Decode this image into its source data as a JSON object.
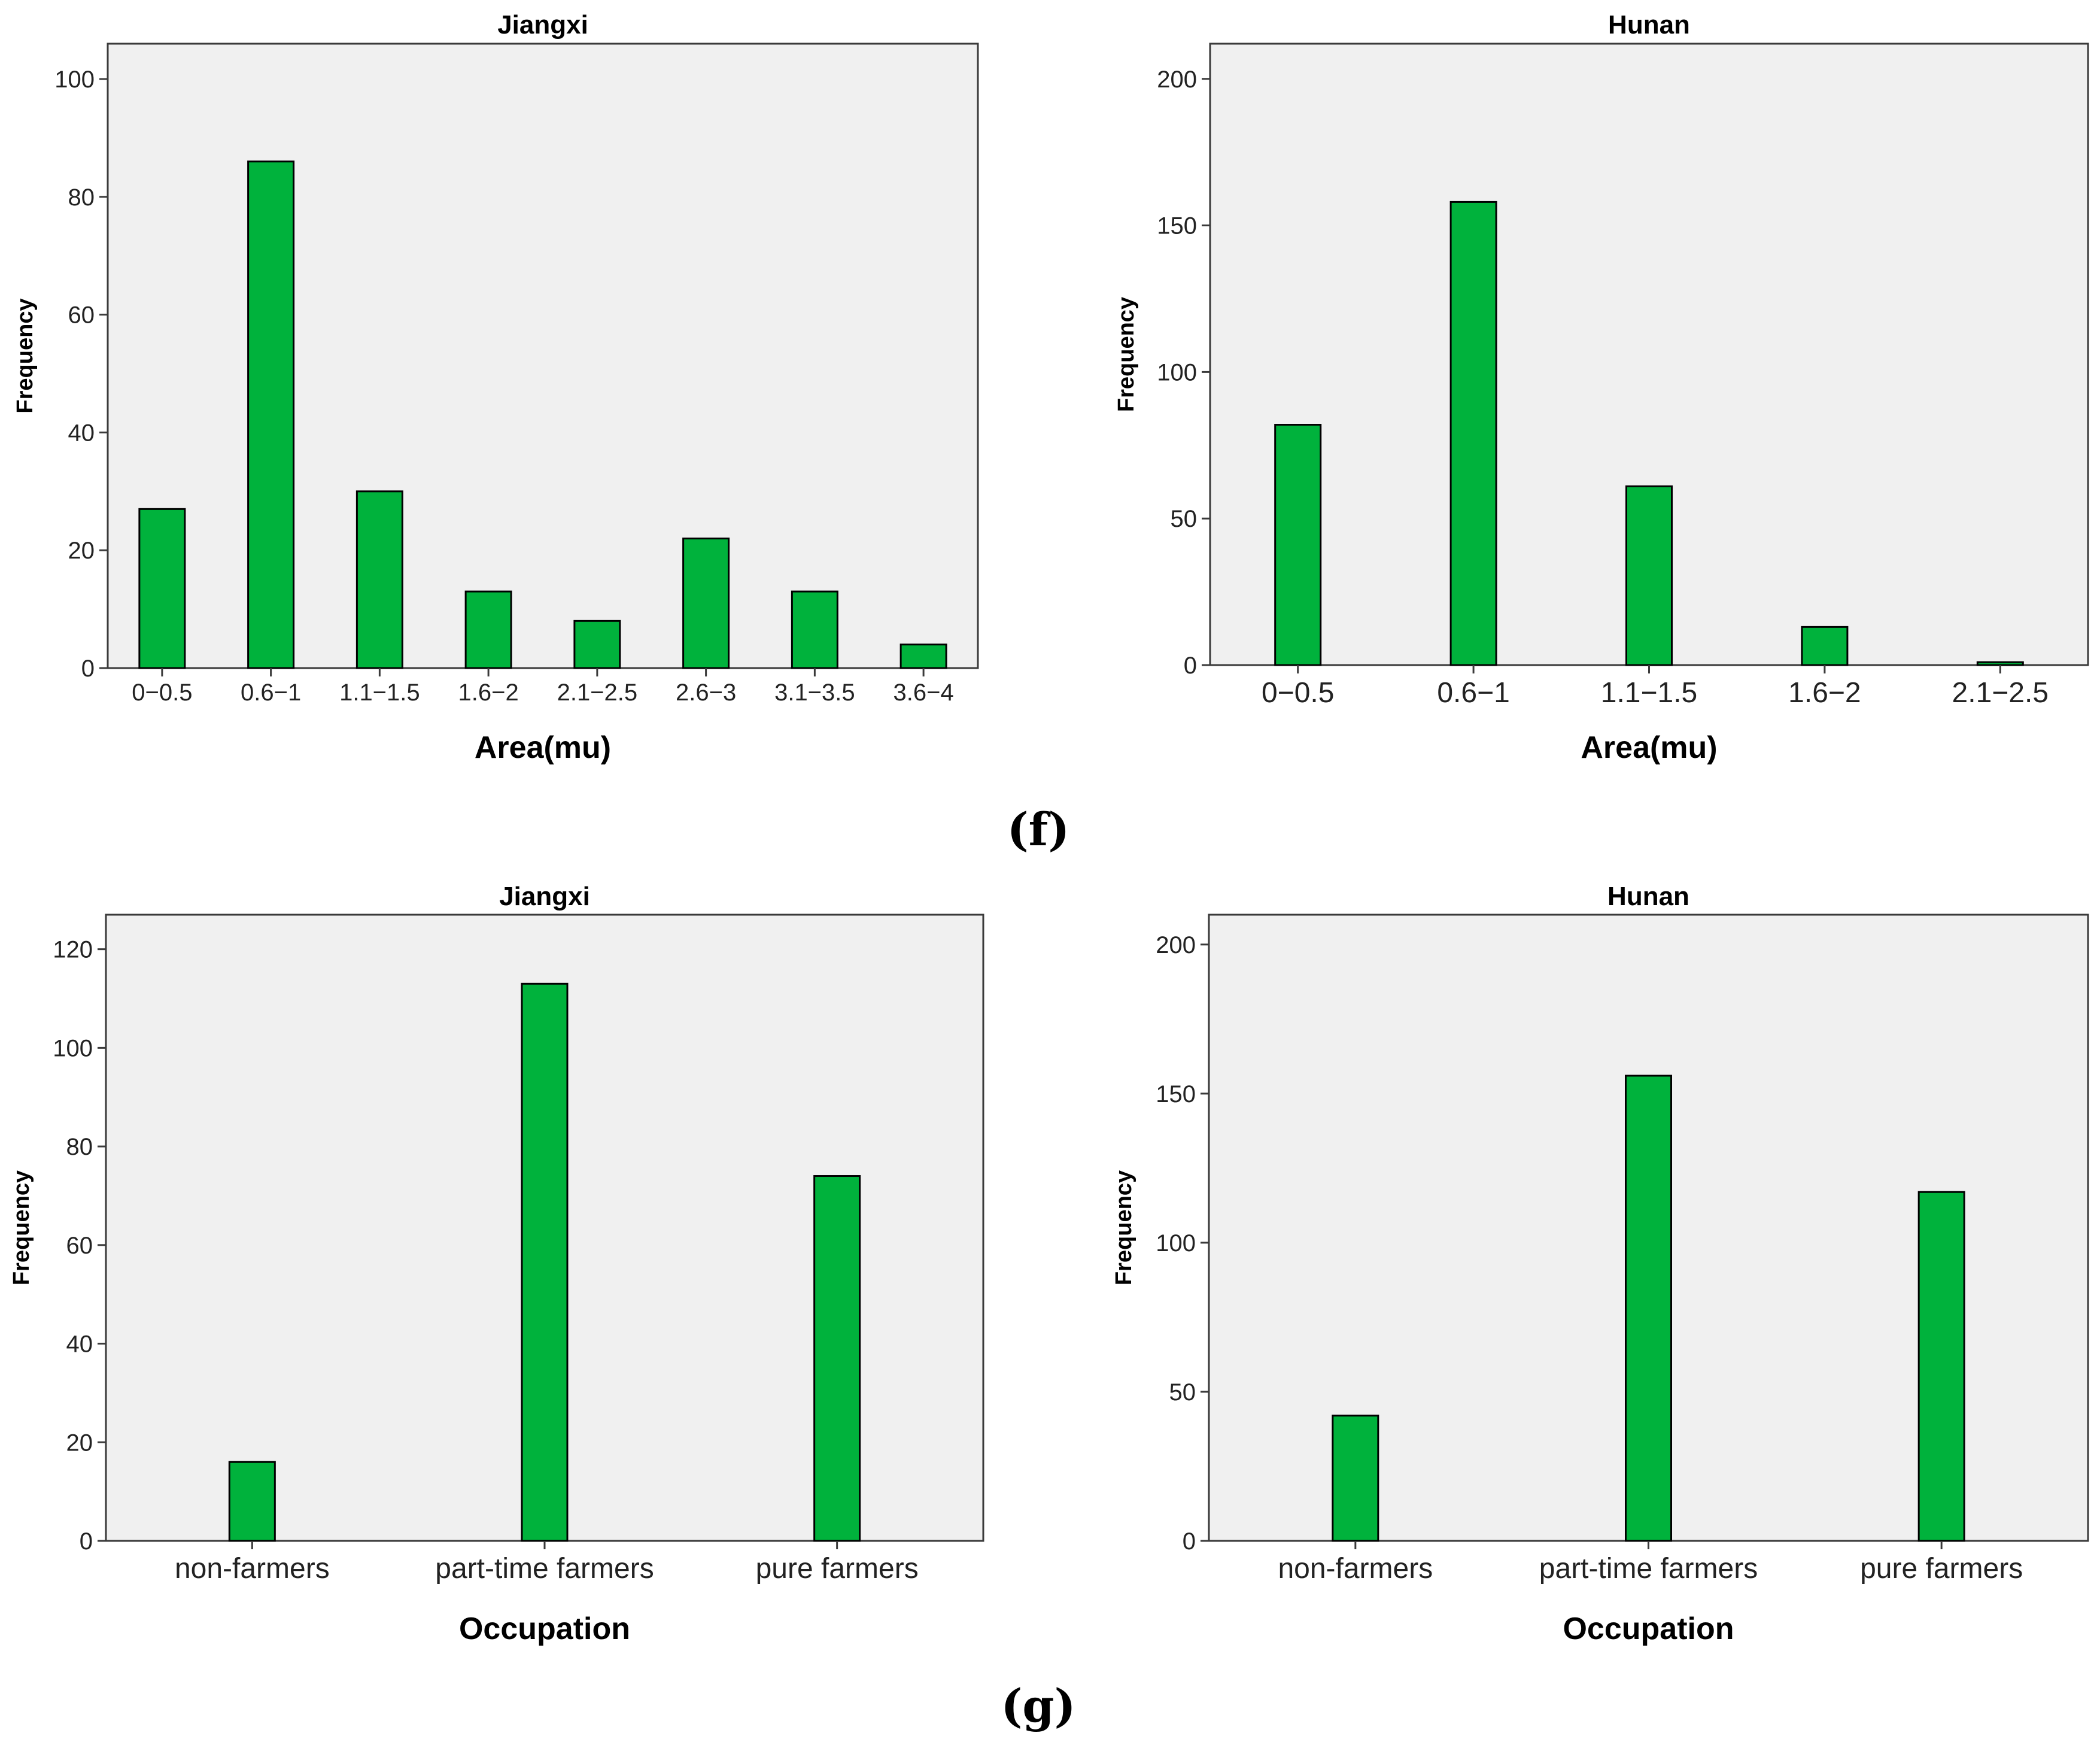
{
  "colors": {
    "bar": "#00b23c",
    "plot_bg": "#f0f0f0",
    "axis": "#3a3a3a"
  },
  "panel_labels": [
    "(f)",
    "(g)"
  ],
  "chart_data": [
    {
      "type": "bar",
      "title": "Jiangxi",
      "xlabel": "Area(mu)",
      "ylabel": "Frequency",
      "categories": [
        "0−0.5",
        "0.6−1",
        "1.1−1.5",
        "1.6−2",
        "2.1−2.5",
        "2.6−3",
        "3.1−3.5",
        "3.6−4"
      ],
      "values": [
        27,
        86,
        30,
        13,
        8,
        22,
        13,
        4
      ],
      "ylim": [
        0,
        106
      ],
      "yticks": [
        0,
        20,
        40,
        60,
        80,
        100
      ],
      "grid": false
    },
    {
      "type": "bar",
      "title": "Hunan",
      "xlabel": "Area(mu)",
      "ylabel": "Frequency",
      "categories": [
        "0−0.5",
        "0.6−1",
        "1.1−1.5",
        "1.6−2",
        "2.1−2.5"
      ],
      "values": [
        82,
        158,
        61,
        13,
        1
      ],
      "ylim": [
        0,
        212
      ],
      "yticks": [
        0,
        50,
        100,
        150,
        200
      ],
      "grid": false
    },
    {
      "type": "bar",
      "title": "Jiangxi",
      "xlabel": "Occupation",
      "ylabel": "Frequency",
      "categories": [
        "non-farmers",
        "part-time farmers",
        "pure farmers"
      ],
      "values": [
        16,
        113,
        74
      ],
      "ylim": [
        0,
        127
      ],
      "yticks": [
        0,
        20,
        40,
        60,
        80,
        100,
        120
      ],
      "grid": false
    },
    {
      "type": "bar",
      "title": "Hunan",
      "xlabel": "Occupation",
      "ylabel": "Frequency",
      "categories": [
        "non-farmers",
        "part-time farmers",
        "pure farmers"
      ],
      "values": [
        42,
        156,
        117
      ],
      "ylim": [
        0,
        210
      ],
      "yticks": [
        0,
        50,
        100,
        150,
        200
      ],
      "grid": false
    }
  ]
}
